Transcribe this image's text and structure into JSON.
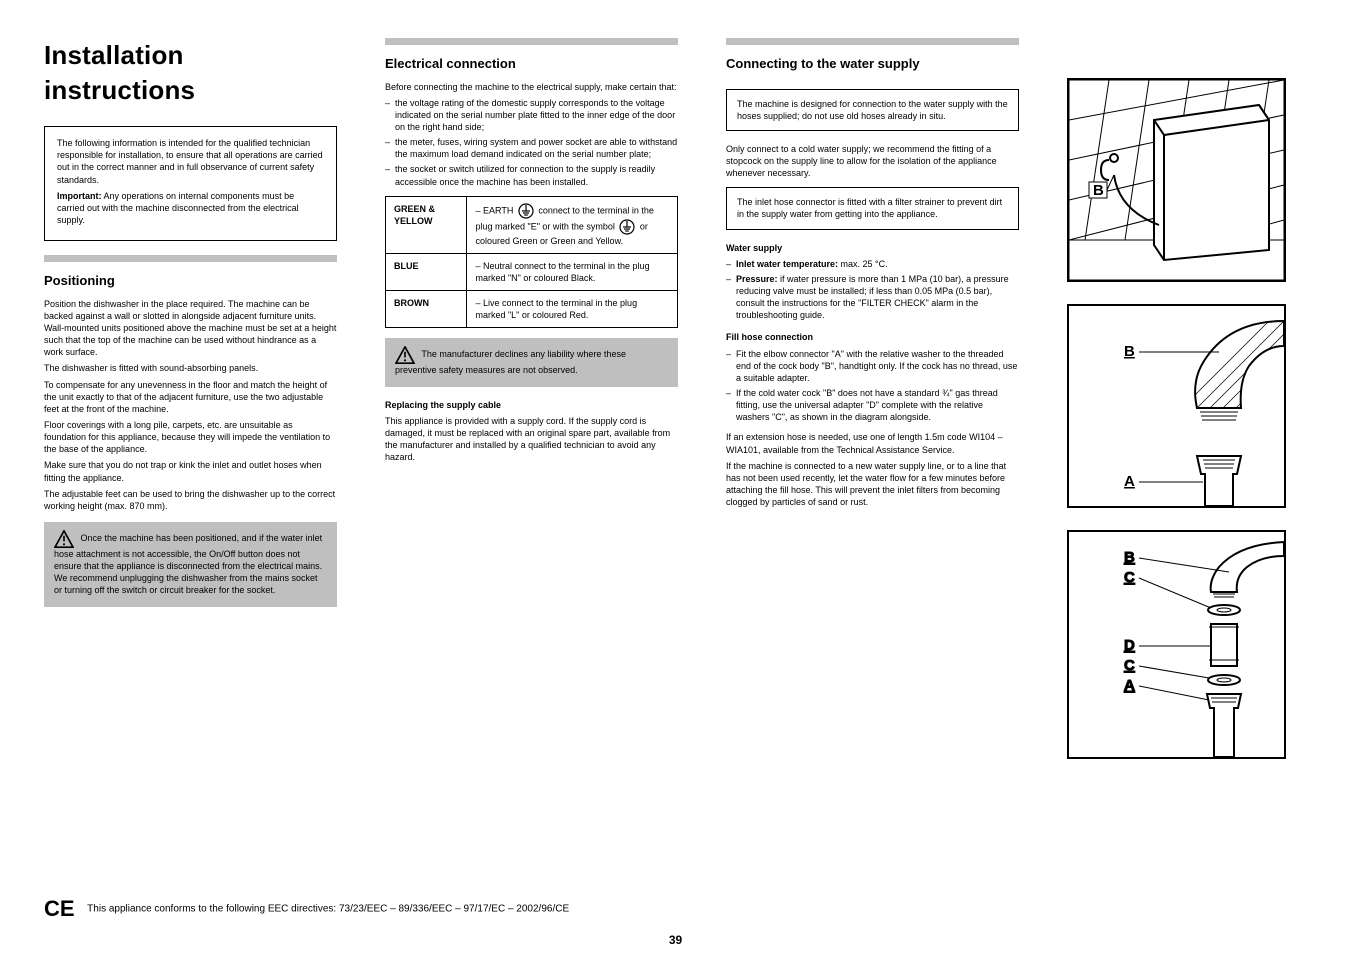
{
  "page_number": "39",
  "title": "Installation instructions",
  "title_box": {
    "line1": "The following information is intended for the qualified technician responsible for installation, to ensure that all operations are carried out in the correct manner and in full observance of current safety standards.",
    "line_bold": "Important:",
    "line2": "Any operations on internal components must be carried out with the machine disconnected from the electrical supply."
  },
  "col1": {
    "head": "Positioning",
    "paras": [
      "Position the dishwasher in the place required. The machine can be backed against a wall or slotted in alongside adjacent furniture units. Wall-mounted units positioned above the machine must be set at a height such that the top of the machine can be used without hindrance as a work surface.",
      "The dishwasher is fitted with sound-absorbing panels.",
      "To compensate for any unevenness in the floor and match the height of the unit exactly to that of the adjacent furniture, use the two adjustable feet at the front of the machine.",
      "Floor coverings with a long pile, carpets, etc. are unsuitable as foundation for this appliance, because they will impede the ventilation to the base of the appliance.",
      "Make sure that you do not trap or kink the inlet and outlet hoses when fitting the appliance.",
      "The adjustable feet can be used to bring the dishwasher up to the correct working height (max. 870 mm)."
    ],
    "warn": "Once the machine has been positioned, and if the water inlet hose attachment is not accessible, the On/Off button does not ensure that the appliance is disconnected from the electrical mains. We recommend unplugging the dishwasher from the mains socket or turning off the switch or circuit breaker for the socket."
  },
  "col2": {
    "head": "Electrical connection",
    "intro": "Before connecting the machine to the electrical supply, make certain that:",
    "bullets": [
      "the voltage rating of the domestic supply corresponds to the voltage indicated on the serial number plate fitted to the inner edge of the door on the right hand side;",
      "the meter, fuses, wiring system and power socket are able to withstand the maximum load demand indicated on the serial number plate;",
      "the socket or switch utilized for connection to the supply is readily accessible once the machine has been installed."
    ],
    "table": [
      {
        "left": "GREEN & YELLOW",
        "right_html": "– EARTH <svg class='ground-sym' width='16' height='16' viewBox='0 0 16 16'><circle cx='8' cy='8' r='7' fill='none' stroke='#000' stroke-width='1.2'/><line x1='8' y1='2' x2='8' y2='8' stroke='#000' stroke-width='1.2'/><line x1='4' y1='8' x2='12' y2='8' stroke='#000' stroke-width='1.2'/><line x1='5' y1='10' x2='11' y2='10' stroke='#000' stroke-width='1.2'/><line x1='6.2' y1='12' x2='9.8' y2='12' stroke='#000' stroke-width='1.2'/></svg> connect to the terminal in the plug marked \"E\" or with the symbol <svg class='ground-sym' width='16' height='16' viewBox='0 0 16 16'><circle cx='8' cy='8' r='7' fill='none' stroke='#000' stroke-width='1.2'/><line x1='8' y1='2' x2='8' y2='8' stroke='#000' stroke-width='1.2'/><line x1='4' y1='8' x2='12' y2='8' stroke='#000' stroke-width='1.2'/><line x1='5' y1='10' x2='11' y2='10' stroke='#000' stroke-width='1.2'/><line x1='6.2' y1='12' x2='9.8' y2='12' stroke='#000' stroke-width='1.2'/></svg> or coloured Green or Green and Yellow."
      },
      {
        "left": "BLUE",
        "right_html": "– Neutral connect to the terminal in the plug marked \"N\" or coloured Black."
      },
      {
        "left": "BROWN",
        "right_html": "– Live connect to the terminal in the plug marked \"L\" or coloured Red."
      }
    ],
    "warn": "The manufacturer declines any liability where these preventive safety measures are not observed.",
    "replace_head": "Replacing the supply cable",
    "replace_body": "This appliance is provided with a supply cord. If the supply cord is damaged, it must be replaced with an original spare part, available from the manufacturer and installed by a qualified technician to avoid any hazard."
  },
  "col3": {
    "head": "Connecting to the water supply",
    "note1": "The machine is designed for connection to the water supply with the hoses supplied; do not use old hoses already in situ.",
    "intro": "Only connect to a cold water supply; we recommend the fitting of a stopcock on the supply line to allow for the isolation of the appliance whenever necessary.",
    "note2": "The inlet hose connector is fitted with a filter strainer to prevent dirt in the supply water from getting into the appliance.",
    "supply_head": "Water supply",
    "supply_bullets": [
      {
        "b": "Inlet water temperature:",
        "t": " max. 25 °C."
      },
      {
        "b": "Pressure:",
        "t": " if water pressure is more than 1 MPa (10 bar), a pressure reducing valve must be installed; if less than 0.05 MPa (0.5 bar), consult the instructions for the \"FILTER CHECK\" alarm in the troubleshooting guide."
      }
    ],
    "fill_head": "Fill hose connection",
    "fill_steps": [
      "Fit the elbow connector \"A\" with the relative washer to the threaded end of the cock body \"B\", handtight only. If the cock has no thread, use a suitable adapter.",
      "If the cold water cock \"B\" does not have a standard ¾\" gas thread fitting, use the universal adapter \"D\" complete with the relative washers \"C\", as shown in the diagram alongside."
    ],
    "more": [
      "If an extension hose is needed, use one of length 1.5m code WI104 – WIA101, available from the Technical Assistance Service.",
      "If the machine is connected to a new water supply line, or to a line that has not been used recently, let the water flow for a few minutes before attaching the fill hose. This will prevent the inlet filters from becoming clogged by particles of sand or rust."
    ]
  },
  "col4": {
    "labels": {
      "B": "B",
      "A": "A",
      "C": "C",
      "D": "D"
    }
  },
  "footer": {
    "ce_text": "This appliance conforms to the following EEC directives:",
    "ce_items": "73/23/EEC – 89/336/EEC – 97/17/EC – 2002/96/CE"
  }
}
